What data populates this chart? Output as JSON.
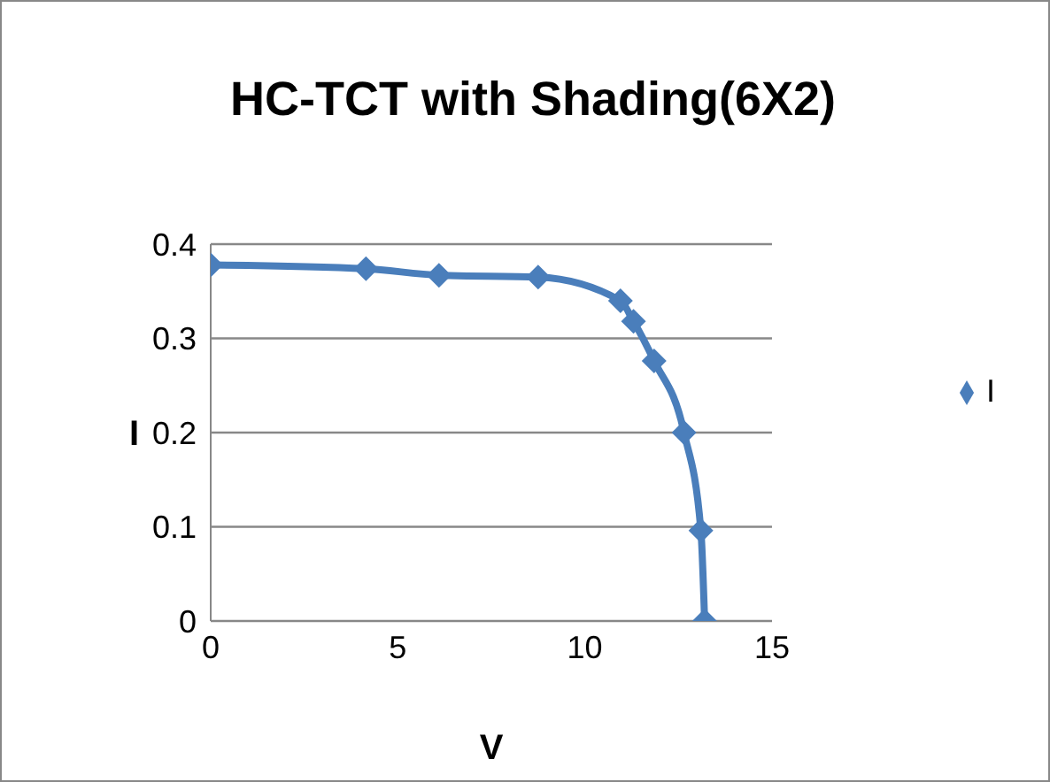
{
  "chart_data": {
    "type": "line",
    "title": "HC-TCT with Shading(6X2)",
    "xlabel": "V",
    "ylabel": "I",
    "x": [
      0,
      4.15,
      6.1,
      8.75,
      10.95,
      11.3,
      11.85,
      12.65,
      13.1,
      13.2
    ],
    "series": [
      {
        "name": "I",
        "color": "#4a7ebb",
        "values": [
          0.378,
          0.374,
          0.367,
          0.365,
          0.34,
          0.318,
          0.276,
          0.2,
          0.096,
          0
        ]
      }
    ],
    "xlim": [
      0,
      15
    ],
    "xticks": [
      0,
      5,
      10,
      15
    ],
    "ylim": [
      0,
      0.4
    ],
    "yticks": [
      0,
      0.1,
      0.2,
      0.3,
      0.4
    ],
    "grid": "y",
    "legend": "right",
    "marker": "diamond"
  }
}
